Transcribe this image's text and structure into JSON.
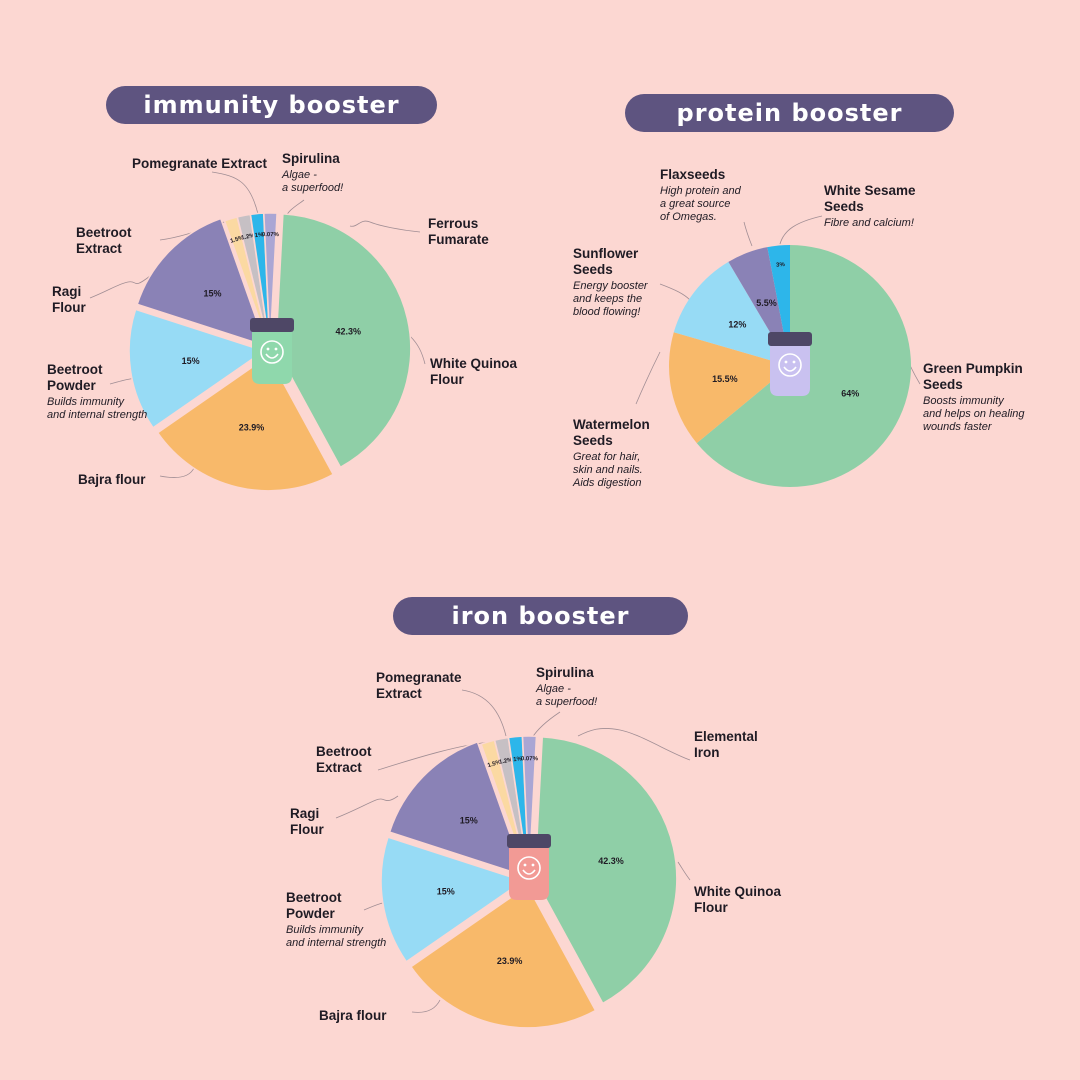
{
  "colors": {
    "background": "#fcd7d2",
    "pill": "#5e5480",
    "green": "#8fcfa7",
    "orange": "#f8b96a",
    "light_blue": "#97dbf5",
    "purple": "#8a82b6",
    "peach": "#fbd9a2",
    "grey": "#c6c0c4",
    "cyan": "#2db6ea",
    "lavender": "#aaa6d4"
  },
  "titles": {
    "immunity": "immunity booster",
    "protein": "protein booster",
    "iron": "iron booster"
  },
  "icons": {
    "jar": "product-jar-icon"
  },
  "chart_data": [
    {
      "type": "pie",
      "title": "immunity booster",
      "slices": [
        {
          "name": "White Quinoa Flour",
          "value": 42.3,
          "label": "42.3%",
          "color": "#8fcfa7",
          "desc": ""
        },
        {
          "name": "Bajra flour",
          "value": 23.9,
          "label": "23.9%",
          "color": "#f8b96a",
          "desc": ""
        },
        {
          "name": "Beetroot Powder",
          "value": 15,
          "label": "15%",
          "color": "#97dbf5",
          "desc": "Builds immunity\nand internal strength"
        },
        {
          "name": "Ragi Flour",
          "value": 15,
          "label": "15%",
          "color": "#8a82b6",
          "desc": ""
        },
        {
          "name": "Beetroot Extract",
          "value": 1.5,
          "label": "1.5%",
          "color": "#fbd9a2",
          "desc": ""
        },
        {
          "name": "Pomegranate Extract",
          "value": 1.2,
          "label": "1.2%",
          "color": "#c6c0c4",
          "desc": ""
        },
        {
          "name": "Spirulina",
          "value": 1,
          "label": "1%",
          "color": "#2db6ea",
          "desc": "Algae -\na superfood!"
        },
        {
          "name": "Ferrous Fumarate",
          "value": 0.07,
          "label": "0.07%",
          "color": "#aaa6d4",
          "desc": ""
        }
      ]
    },
    {
      "type": "pie",
      "title": "protein booster",
      "slices": [
        {
          "name": "Green Pumpkin Seeds",
          "value": 64,
          "label": "64%",
          "color": "#8fcfa7",
          "desc": "Boosts immunity\nand helps on healing\nwounds faster"
        },
        {
          "name": "Watermelon Seeds",
          "value": 15.5,
          "label": "15.5%",
          "color": "#f8b96a",
          "desc": "Great for hair,\nskin and nails.\nAids digestion"
        },
        {
          "name": "Sunflower Seeds",
          "value": 12,
          "label": "12%",
          "color": "#97dbf5",
          "desc": "Energy booster\nand keeps the\nblood flowing!"
        },
        {
          "name": "Flaxseeds",
          "value": 5.5,
          "label": "5.5%",
          "color": "#8a82b6",
          "desc": "High protein and\na great source\nof Omegas."
        },
        {
          "name": "White Sesame Seeds",
          "value": 3,
          "label": "3%",
          "color": "#2db6ea",
          "desc": "Fibre and calcium!"
        }
      ]
    },
    {
      "type": "pie",
      "title": "iron booster",
      "slices": [
        {
          "name": "White Quinoa Flour",
          "value": 42.3,
          "label": "42.3%",
          "color": "#8fcfa7",
          "desc": ""
        },
        {
          "name": "Bajra flour",
          "value": 23.9,
          "label": "23.9%",
          "color": "#f8b96a",
          "desc": ""
        },
        {
          "name": "Beetroot Powder",
          "value": 15,
          "label": "15%",
          "color": "#97dbf5",
          "desc": "Builds immunity\nand internal strength"
        },
        {
          "name": "Ragi Flour",
          "value": 15,
          "label": "15%",
          "color": "#8a82b6",
          "desc": ""
        },
        {
          "name": "Beetroot Extract",
          "value": 1.5,
          "label": "1.5%",
          "color": "#fbd9a2",
          "desc": ""
        },
        {
          "name": "Pomegranate Extract",
          "value": 1.2,
          "label": "1.2%",
          "color": "#c6c0c4",
          "desc": ""
        },
        {
          "name": "Spirulina",
          "value": 1,
          "label": "1%",
          "color": "#2db6ea",
          "desc": "Algae -\na superfood!"
        },
        {
          "name": "Elemental Iron",
          "value": 0.07,
          "label": "0.07%",
          "color": "#aaa6d4",
          "desc": ""
        }
      ]
    }
  ]
}
